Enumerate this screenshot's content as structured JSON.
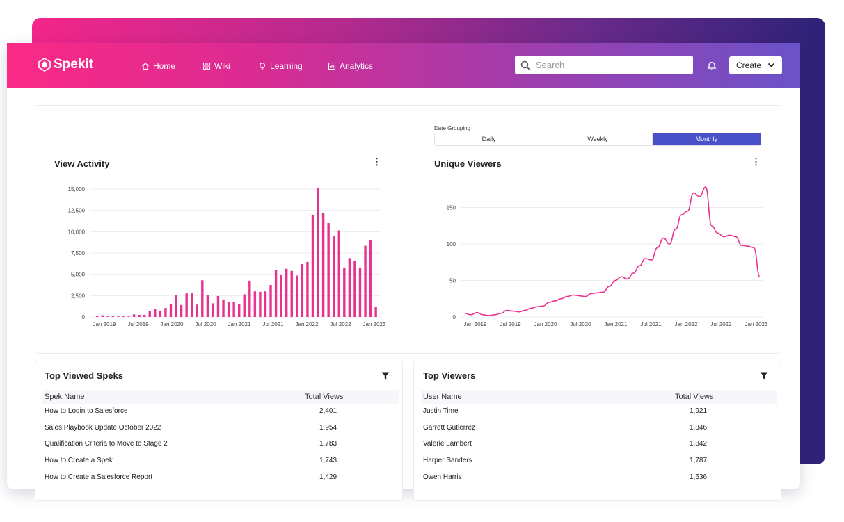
{
  "app": {
    "logo": "Spekit",
    "nav": [
      {
        "label": "Home",
        "icon": "home-icon"
      },
      {
        "label": "Wiki",
        "icon": "grid-icon"
      },
      {
        "label": "Learning",
        "icon": "lightbulb-icon"
      },
      {
        "label": "Analytics",
        "icon": "analytics-icon"
      }
    ],
    "search_placeholder": "Search",
    "create_label": "Create"
  },
  "date_grouping": {
    "label": "Date Grouping",
    "options": [
      "Daily",
      "Weekly",
      "Monthly"
    ],
    "selected": "Monthly"
  },
  "accent_color": "#e8328f",
  "selected_color": "#4a50c8",
  "chart_data": [
    {
      "type": "bar",
      "title": "View Activity",
      "color": "#e8328f",
      "x_ticks": [
        "Jan 2019",
        "Jul 2019",
        "Jan 2020",
        "Jul 2020",
        "Jan 2021",
        "Jul 2021",
        "Jan 2022",
        "Jul 2022",
        "Jan 2023"
      ],
      "y_ticks": [
        "0",
        "2,500",
        "5,000",
        "7,500",
        "10,000",
        "12,500",
        "15,000"
      ],
      "ylim": [
        0,
        15000
      ],
      "values": [
        150,
        200,
        0,
        120,
        0,
        0,
        0,
        300,
        250,
        250,
        700,
        900,
        750,
        1050,
        1550,
        2550,
        1400,
        2750,
        2850,
        1450,
        4300,
        2550,
        1600,
        2450,
        2050,
        1750,
        1750,
        1550,
        2650,
        4250,
        3000,
        2950,
        3000,
        3750,
        5500,
        4950,
        5650,
        5400,
        4850,
        6200,
        6450,
        12000,
        15100,
        12200,
        11000,
        9450,
        10150,
        5800,
        6900,
        6550,
        5800,
        8350,
        9000,
        1200
      ],
      "grid": true
    },
    {
      "type": "line",
      "title": "Unique Viewers",
      "color": "#e8328f",
      "x_ticks": [
        "Jan 2019",
        "Jul 2019",
        "Jan 2020",
        "Jul 2020",
        "Jan 2021",
        "Jul 2021",
        "Jan 2022",
        "Jul 2022",
        "Jan 2023"
      ],
      "y_ticks": [
        "0",
        "50",
        "100",
        "150"
      ],
      "ylim": [
        0,
        180
      ],
      "values": [
        5,
        3,
        6,
        3,
        2,
        3,
        5,
        9,
        8,
        7,
        9,
        12,
        14,
        15,
        20,
        22,
        25,
        28,
        30,
        29,
        28,
        32,
        33,
        34,
        42,
        50,
        55,
        52,
        60,
        70,
        80,
        78,
        95,
        108,
        100,
        120,
        140,
        145,
        170,
        165,
        178,
        125,
        115,
        110,
        112,
        110,
        98,
        97,
        95,
        55
      ],
      "grid": true
    }
  ],
  "top_speks": {
    "title": "Top Viewed Speks",
    "columns": [
      "Spek Name",
      "Total Views"
    ],
    "rows": [
      [
        "How to Login to Salesforce",
        "2,401"
      ],
      [
        "Sales Playbook Update October 2022",
        "1,954"
      ],
      [
        "Qualification Criteria to Move to Stage 2",
        "1,783"
      ],
      [
        "How to Create a Spek",
        "1,743"
      ],
      [
        "How to Create a Salesforce Report",
        "1,429"
      ]
    ]
  },
  "top_viewers": {
    "title": "Top Viewers",
    "columns": [
      "User Name",
      "Total Views"
    ],
    "rows": [
      [
        "Justin Time",
        "1,921"
      ],
      [
        "Garrett Gutierrez",
        "1,846"
      ],
      [
        "Valerie Lambert",
        "1,842"
      ],
      [
        "Harper Sanders",
        "1,787"
      ],
      [
        "Owen Harris",
        "1,636"
      ]
    ]
  }
}
